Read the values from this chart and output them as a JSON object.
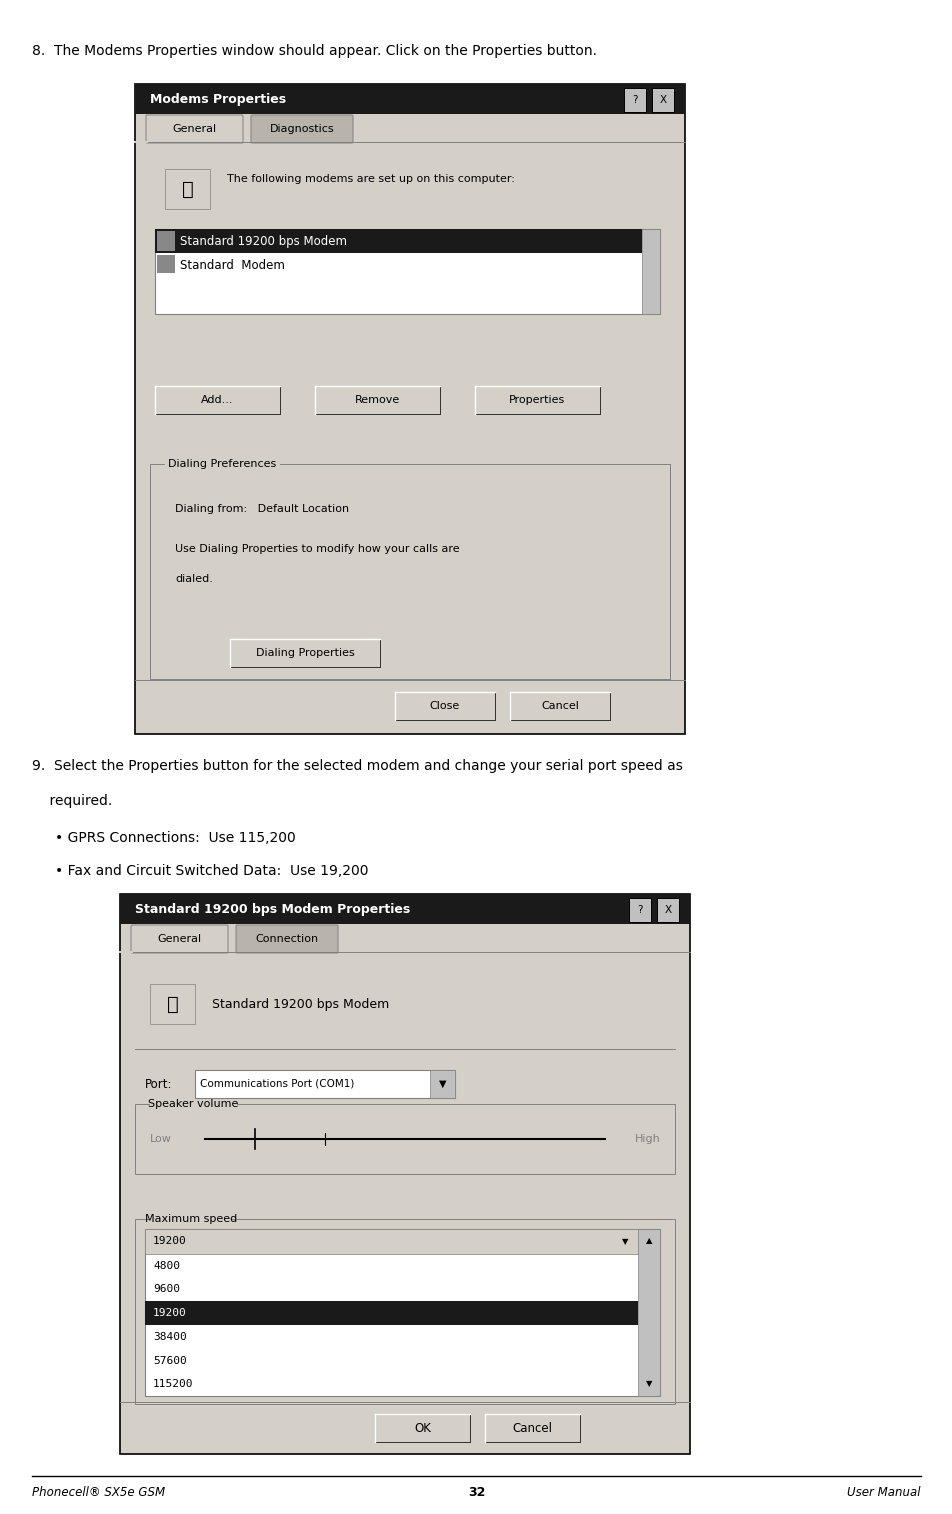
{
  "page_width": 9.53,
  "page_height": 15.14,
  "bg_color": "#ffffff",
  "footer_left": "Phonecell® SX5e GSM",
  "footer_center": "32",
  "footer_right": "User Manual",
  "step8_text": "8.  The Modems Properties window should appear. Click on the Properties button.",
  "step9_line1": "9.  Select the Properties button for the selected modem and change your serial port speed as",
  "step9_line2": "    required.",
  "bullet1": "• GPRS Connections:  Use 115,200",
  "bullet2": "• Fax and Circuit Switched Data:  Use 19,200",
  "dialog1_title": "Modems Properties",
  "dialog1_tabs": [
    "General",
    "Diagnostics"
  ],
  "dialog1_modem_text": "The following modems are set up on this computer:",
  "dialog1_selected_item": "Standard 19200 bps Modem",
  "dialog1_item2": "Standard  Modem",
  "dialog1_btn1": "Add...",
  "dialog1_btn2": "Remove",
  "dialog1_btn3": "Properties",
  "dialog1_group": "Dialing Preferences",
  "dialog1_dialing_from": "Dialing from:   Default Location",
  "dialog1_dialing_desc1": "Use Dialing Properties to modify how your calls are",
  "dialog1_dialing_desc2": "dialed.",
  "dialog1_dialing_btn": "Dialing Properties",
  "dialog1_close_btn": "Close",
  "dialog1_cancel_btn": "Cancel",
  "dialog2_title": "Standard 19200 bps Modem Properties",
  "dialog2_tabs": [
    "General",
    "Connection"
  ],
  "dialog2_modem_label": "Standard 19200 bps Modem",
  "dialog2_port_label": "Port:",
  "dialog2_port_value": "Communications Port (COM1)",
  "dialog2_speaker_group": "Speaker volume",
  "dialog2_low": "Low",
  "dialog2_high": "High",
  "dialog2_speed_group": "Maximum speed",
  "dialog2_speeds": [
    "19200",
    "4800",
    "9600",
    "19200",
    "38400",
    "57600",
    "115200"
  ],
  "dialog2_selected_speed": "19200",
  "dialog2_ok": "OK",
  "dialog2_cancel": "Cancel",
  "title_bar_color": "#1a1a1a",
  "title_text_color": "#ffffff",
  "selected_bg": "#1a1a1a",
  "selected_fg": "#ffffff",
  "dialog_bg": "#c0c0c0",
  "dialog_inner_bg": "#d4d0c8",
  "button_bg": "#d4d0c8",
  "listbox_bg": "#ffffff",
  "text_color": "#000000",
  "font_family": "DejaVu Sans",
  "mono_font": "DejaVu Sans Mono"
}
